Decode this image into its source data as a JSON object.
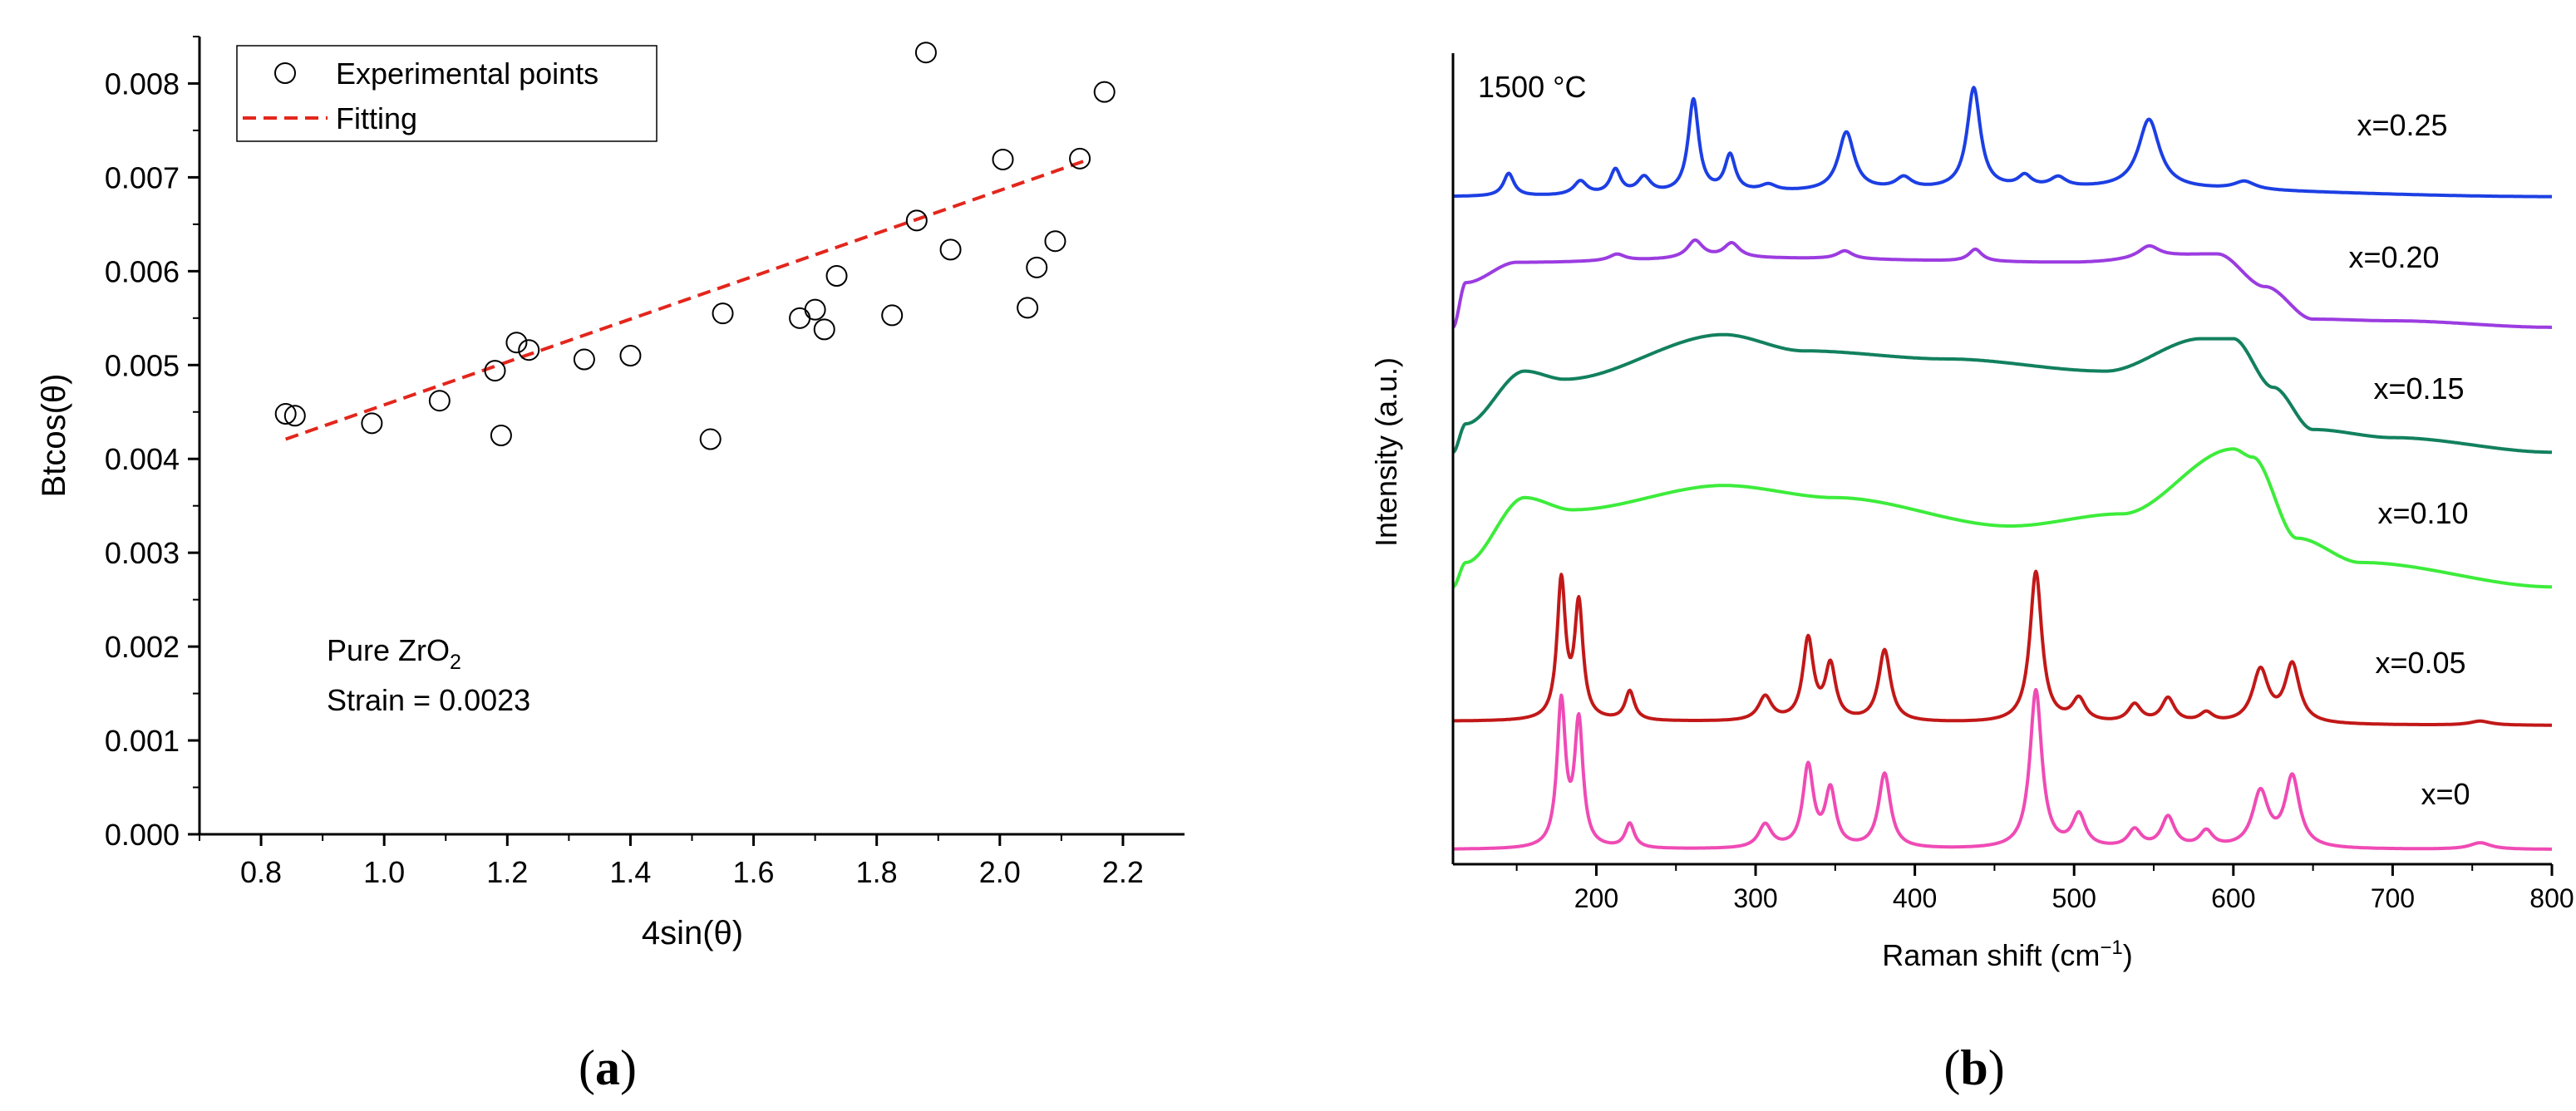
{
  "chart_data": [
    {
      "type": "scatter",
      "panel_label": "a",
      "xlabel": "4sin(θ)",
      "ylabel": "Btcos(θ)",
      "xlim": [
        0.7,
        2.3
      ],
      "ylim": [
        0.0,
        0.0085
      ],
      "xticks": [
        0.8,
        1.0,
        1.2,
        1.4,
        1.6,
        1.8,
        2.0,
        2.2
      ],
      "xtick_labels": [
        "0.8",
        "1.0",
        "1.2",
        "1.4",
        "1.6",
        "1.8",
        "2.0",
        "2.2"
      ],
      "yticks": [
        0.0,
        0.001,
        0.002,
        0.003,
        0.004,
        0.005,
        0.006,
        0.007,
        0.008
      ],
      "ytick_labels": [
        "0.000",
        "0.001",
        "0.002",
        "0.003",
        "0.004",
        "0.005",
        "0.006",
        "0.007",
        "0.008"
      ],
      "grid": false,
      "legend": {
        "position": "top-left",
        "entries": [
          "Experimental points",
          "Fitting"
        ]
      },
      "annotation": {
        "line1_base": "Pure ZrO",
        "line1_sub": "2",
        "line2": "Strain = 0.0023"
      },
      "series": [
        {
          "name": "Experimental points",
          "marker": "open-circle",
          "points": [
            [
              0.84,
              0.00448
            ],
            [
              0.855,
              0.00446
            ],
            [
              0.98,
              0.00438
            ],
            [
              1.09,
              0.00462
            ],
            [
              1.18,
              0.00494
            ],
            [
              1.19,
              0.00425
            ],
            [
              1.215,
              0.00524
            ],
            [
              1.235,
              0.00516
            ],
            [
              1.325,
              0.00506
            ],
            [
              1.4,
              0.0051
            ],
            [
              1.53,
              0.00421
            ],
            [
              1.55,
              0.00555
            ],
            [
              1.675,
              0.0055
            ],
            [
              1.7,
              0.00559
            ],
            [
              1.715,
              0.00538
            ],
            [
              1.735,
              0.00595
            ],
            [
              1.825,
              0.00553
            ],
            [
              1.865,
              0.00654
            ],
            [
              1.88,
              0.00833
            ],
            [
              1.92,
              0.00623
            ],
            [
              2.005,
              0.00719
            ],
            [
              2.045,
              0.00561
            ],
            [
              2.06,
              0.00604
            ],
            [
              2.09,
              0.00632
            ],
            [
              2.13,
              0.0072
            ],
            [
              2.17,
              0.00791
            ]
          ]
        },
        {
          "name": "Fitting",
          "style": "dashed",
          "color": "#e3261c",
          "x": [
            0.84,
            2.14
          ],
          "y": [
            0.00421,
            0.00718
          ]
        }
      ]
    },
    {
      "type": "line",
      "panel_label": "b",
      "xlabel_base": "Raman shift (cm",
      "xlabel_sup": "−1",
      "xlabel_end": ")",
      "ylabel": "Intensity (a.u.)",
      "title_annotation": "1500 °C",
      "xlim": [
        110,
        800
      ],
      "ylim": [
        0,
        1
      ],
      "xticks": [
        200,
        300,
        400,
        500,
        600,
        700,
        800
      ],
      "xtick_labels": [
        "200",
        "300",
        "400",
        "500",
        "600",
        "700",
        "800"
      ],
      "yticks": [],
      "grid": false,
      "series": [
        {
          "name": "x=0.25",
          "color": "#1c3fe3",
          "baseline": 0.823,
          "background": [
            [
              110,
              0.0
            ],
            [
              520,
              0.01
            ],
            [
              800,
              0.0
            ]
          ],
          "peaks": [
            [
              145,
              0.028,
              4
            ],
            [
              190,
              0.017,
              5
            ],
            [
              212,
              0.03,
              4
            ],
            [
              230,
              0.02,
              5
            ],
            [
              261,
              0.115,
              4
            ],
            [
              284,
              0.045,
              4
            ],
            [
              308,
              0.008,
              6
            ],
            [
              357,
              0.072,
              6
            ],
            [
              393,
              0.014,
              6
            ],
            [
              437,
              0.124,
              5
            ],
            [
              469,
              0.014,
              5
            ],
            [
              490,
              0.012,
              6
            ],
            [
              547,
              0.085,
              8
            ],
            [
              607,
              0.01,
              8
            ]
          ]
        },
        {
          "name": "x=0.20",
          "color": "#9b3ce0",
          "baseline": 0.662,
          "background": [
            [
              110,
              0.0
            ],
            [
              118,
              0.055
            ],
            [
              150,
              0.08
            ],
            [
              300,
              0.085
            ],
            [
              500,
              0.08
            ],
            [
              590,
              0.09
            ],
            [
              620,
              0.05
            ],
            [
              650,
              0.01
            ],
            [
              700,
              0.008
            ],
            [
              800,
              0.0
            ]
          ],
          "peaks": [
            [
              213,
              0.008,
              6
            ],
            [
              262,
              0.022,
              6
            ],
            [
              285,
              0.018,
              6
            ],
            [
              356,
              0.01,
              6
            ],
            [
              438,
              0.015,
              5
            ],
            [
              547,
              0.015,
              8
            ]
          ]
        },
        {
          "name": "x=0.15",
          "color": "#12805e",
          "baseline": 0.508,
          "background": [
            [
              110,
              0.0
            ],
            [
              118,
              0.035
            ],
            [
              155,
              0.1
            ],
            [
              180,
              0.09
            ],
            [
              280,
              0.145
            ],
            [
              330,
              0.125
            ],
            [
              420,
              0.115
            ],
            [
              520,
              0.1
            ],
            [
              580,
              0.14
            ],
            [
              600,
              0.14
            ],
            [
              625,
              0.08
            ],
            [
              650,
              0.028
            ],
            [
              700,
              0.018
            ],
            [
              800,
              0.0
            ]
          ]
        },
        {
          "name": "x=0.10",
          "color": "#3dec3b",
          "baseline": 0.342,
          "background": [
            [
              110,
              0.0
            ],
            [
              118,
              0.03
            ],
            [
              155,
              0.11
            ],
            [
              185,
              0.095
            ],
            [
              280,
              0.125
            ],
            [
              350,
              0.11
            ],
            [
              460,
              0.075
            ],
            [
              530,
              0.09
            ],
            [
              600,
              0.17
            ],
            [
              612,
              0.16
            ],
            [
              640,
              0.06
            ],
            [
              680,
              0.03
            ],
            [
              800,
              0.0
            ]
          ]
        },
        {
          "name": "x=0.05",
          "color": "#c21818",
          "baseline": 0.176,
          "background": [
            [
              110,
              0.0
            ],
            [
              800,
              -0.005
            ]
          ],
          "peaks": [
            [
              178,
              0.17,
              3.2
            ],
            [
              189,
              0.14,
              3.2
            ],
            [
              221,
              0.036,
              3.5
            ],
            [
              306,
              0.03,
              5
            ],
            [
              333,
              0.1,
              4
            ],
            [
              347,
              0.067,
              4
            ],
            [
              381,
              0.088,
              4.5
            ],
            [
              476,
              0.186,
              4.5
            ],
            [
              503,
              0.028,
              5
            ],
            [
              538,
              0.022,
              5
            ],
            [
              559,
              0.03,
              5
            ],
            [
              583,
              0.012,
              5
            ],
            [
              617,
              0.065,
              6
            ],
            [
              637,
              0.072,
              5.5
            ],
            [
              755,
              0.005,
              8
            ]
          ]
        },
        {
          "name": "x=0",
          "color": "#ef4bb5",
          "baseline": 0.018,
          "background": [
            [
              110,
              0.0
            ],
            [
              800,
              0.0
            ]
          ],
          "peaks": [
            [
              178,
              0.178,
              3.2
            ],
            [
              189,
              0.153,
              3.2
            ],
            [
              221,
              0.03,
              3.5
            ],
            [
              306,
              0.029,
              5
            ],
            [
              333,
              0.1,
              4
            ],
            [
              347,
              0.07,
              4
            ],
            [
              381,
              0.092,
              4.5
            ],
            [
              476,
              0.195,
              4.5
            ],
            [
              503,
              0.04,
              5
            ],
            [
              538,
              0.022,
              5
            ],
            [
              559,
              0.038,
              5
            ],
            [
              583,
              0.02,
              5
            ],
            [
              617,
              0.068,
              6
            ],
            [
              637,
              0.087,
              5.5
            ],
            [
              755,
              0.008,
              8
            ]
          ]
        }
      ]
    }
  ]
}
